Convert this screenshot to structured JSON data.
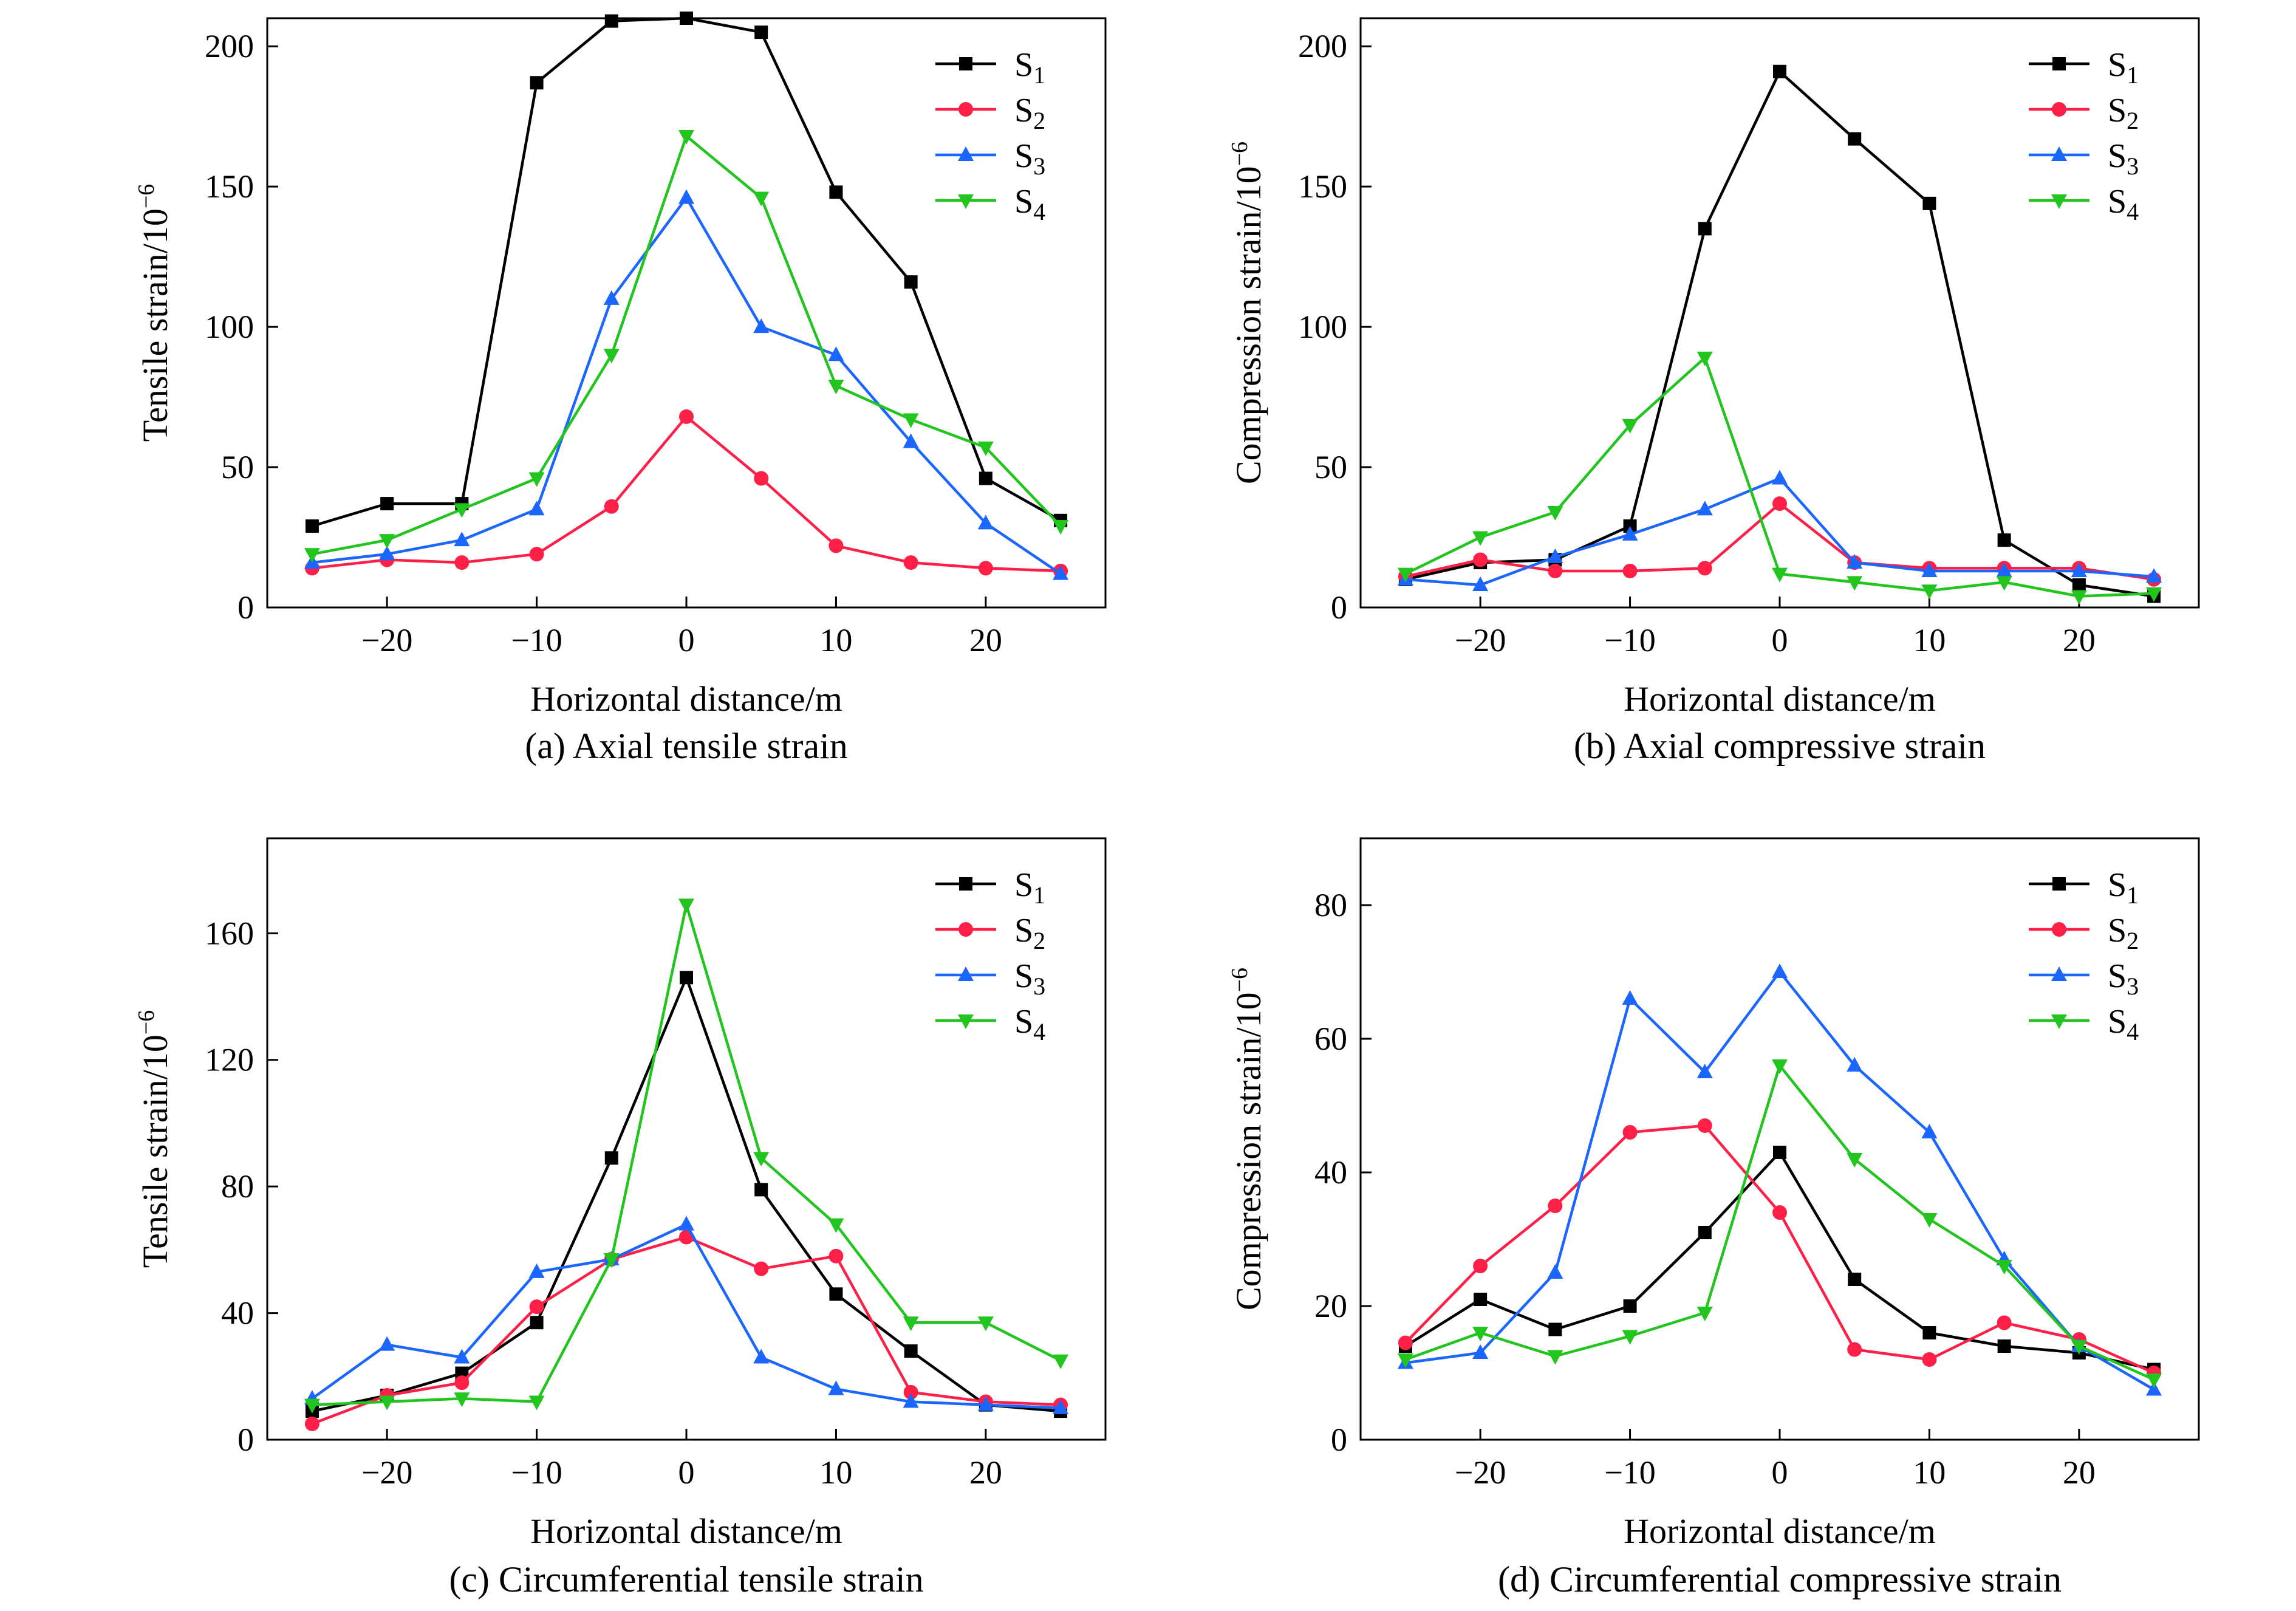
{
  "x_label": "Horizontal distance/m",
  "legend": [
    {
      "base": "S",
      "sub": "1"
    },
    {
      "base": "S",
      "sub": "2"
    },
    {
      "base": "S",
      "sub": "3"
    },
    {
      "base": "S",
      "sub": "4"
    }
  ],
  "series_colors": [
    "#000000",
    "#ff1f47",
    "#1a66ff",
    "#22c41e"
  ],
  "series_markers": [
    "square",
    "circle",
    "triangle-up",
    "triangle-down"
  ],
  "chart_data": [
    {
      "type": "line",
      "caption": "(a) Axial tensile strain",
      "ylabel": "Tensile strain/10",
      "ylabel_sup": "−6",
      "xlabel": "Horizontal distance/m",
      "xlim": [
        -28,
        28
      ],
      "ylim": [
        0,
        210
      ],
      "xticks": [
        -20,
        -10,
        0,
        10,
        20
      ],
      "xtick_labels": [
        "−20",
        "−10",
        "0",
        "10",
        "20"
      ],
      "yticks": [
        0,
        50,
        100,
        150,
        200
      ],
      "ytick_labels": [
        "0",
        "50",
        "100",
        "150",
        "200"
      ],
      "grid": false,
      "legend_position": "top-right",
      "x": [
        -25,
        -20,
        -15,
        -10,
        -5,
        0,
        5,
        10,
        15,
        20,
        25
      ],
      "series": [
        {
          "values": [
            29,
            37,
            37,
            187,
            209,
            210,
            205,
            148,
            116,
            46,
            31
          ]
        },
        {
          "values": [
            14,
            17,
            16,
            19,
            36,
            68,
            46,
            22,
            16,
            14,
            13
          ]
        },
        {
          "values": [
            16,
            19,
            24,
            35,
            110,
            146,
            100,
            90,
            59,
            30,
            12
          ]
        },
        {
          "values": [
            19,
            24,
            35,
            46,
            90,
            168,
            146,
            79,
            67,
            57,
            29
          ]
        }
      ]
    },
    {
      "type": "line",
      "caption": "(b) Axial compressive strain",
      "ylabel": "Compression strain/10",
      "ylabel_sup": "−6",
      "xlabel": "Horizontal distance/m",
      "xlim": [
        -28,
        28
      ],
      "ylim": [
        0,
        210
      ],
      "xticks": [
        -20,
        -10,
        0,
        10,
        20
      ],
      "xtick_labels": [
        "−20",
        "−10",
        "0",
        "10",
        "20"
      ],
      "yticks": [
        0,
        50,
        100,
        150,
        200
      ],
      "ytick_labels": [
        "0",
        "50",
        "100",
        "150",
        "200"
      ],
      "grid": false,
      "legend_position": "top-right",
      "x": [
        -25,
        -20,
        -15,
        -10,
        -5,
        0,
        5,
        10,
        15,
        20,
        25
      ],
      "series": [
        {
          "values": [
            10,
            16,
            17,
            29,
            135,
            191,
            167,
            144,
            24,
            8,
            4
          ]
        },
        {
          "values": [
            11,
            17,
            13,
            13,
            14,
            37,
            16,
            14,
            14,
            14,
            10
          ]
        },
        {
          "values": [
            10,
            8,
            18,
            26,
            35,
            46,
            16,
            13,
            13,
            13,
            11
          ]
        },
        {
          "values": [
            12,
            25,
            34,
            65,
            89,
            12,
            9,
            6,
            9,
            4,
            5
          ]
        }
      ]
    },
    {
      "type": "line",
      "caption": "(c) Circumferential tensile strain",
      "ylabel": "Tensile strain/10",
      "ylabel_sup": "−6",
      "xlabel": "Horizontal distance/m",
      "xlim": [
        -28,
        28
      ],
      "ylim": [
        0,
        190
      ],
      "xticks": [
        -20,
        -10,
        0,
        10,
        20
      ],
      "xtick_labels": [
        "−20",
        "−10",
        "0",
        "10",
        "20"
      ],
      "yticks": [
        0,
        40,
        80,
        120,
        160
      ],
      "ytick_labels": [
        "0",
        "40",
        "80",
        "120",
        "160"
      ],
      "grid": false,
      "legend_position": "top-right",
      "x": [
        -25,
        -20,
        -15,
        -10,
        -5,
        0,
        5,
        10,
        15,
        20,
        25
      ],
      "series": [
        {
          "values": [
            9,
            14,
            21,
            37,
            89,
            146,
            79,
            46,
            28,
            11,
            9
          ]
        },
        {
          "values": [
            5,
            14,
            18,
            42,
            57,
            64,
            54,
            58,
            15,
            12,
            11
          ]
        },
        {
          "values": [
            13,
            30,
            26,
            53,
            57,
            68,
            26,
            16,
            12,
            11,
            10
          ]
        },
        {
          "values": [
            11,
            12,
            13,
            12,
            57,
            169,
            89,
            68,
            37,
            37,
            25
          ]
        }
      ]
    },
    {
      "type": "line",
      "caption": "(d) Circumferential compressive strain",
      "ylabel": "Compression strain/10",
      "ylabel_sup": "−6",
      "xlabel": "Horizontal distance/m",
      "xlim": [
        -28,
        28
      ],
      "ylim": [
        0,
        90
      ],
      "xticks": [
        -20,
        -10,
        0,
        10,
        20
      ],
      "xtick_labels": [
        "−20",
        "−10",
        "0",
        "10",
        "20"
      ],
      "yticks": [
        0,
        20,
        40,
        60,
        80
      ],
      "ytick_labels": [
        "0",
        "20",
        "40",
        "60",
        "80"
      ],
      "grid": false,
      "legend_position": "top-right",
      "x": [
        -25,
        -20,
        -15,
        -10,
        -5,
        0,
        5,
        10,
        15,
        20,
        25
      ],
      "series": [
        {
          "values": [
            14,
            21,
            16.5,
            20,
            31,
            43,
            24,
            16,
            14,
            13,
            10.5
          ]
        },
        {
          "values": [
            14.5,
            26,
            35,
            46,
            47,
            34,
            13.5,
            12,
            17.5,
            15,
            10
          ]
        },
        {
          "values": [
            11.5,
            13,
            25,
            66,
            55,
            70,
            56,
            46,
            27,
            14,
            7.5
          ]
        },
        {
          "values": [
            12,
            16,
            12.5,
            15.5,
            19,
            56,
            42,
            33,
            26,
            14,
            9
          ]
        }
      ]
    }
  ]
}
